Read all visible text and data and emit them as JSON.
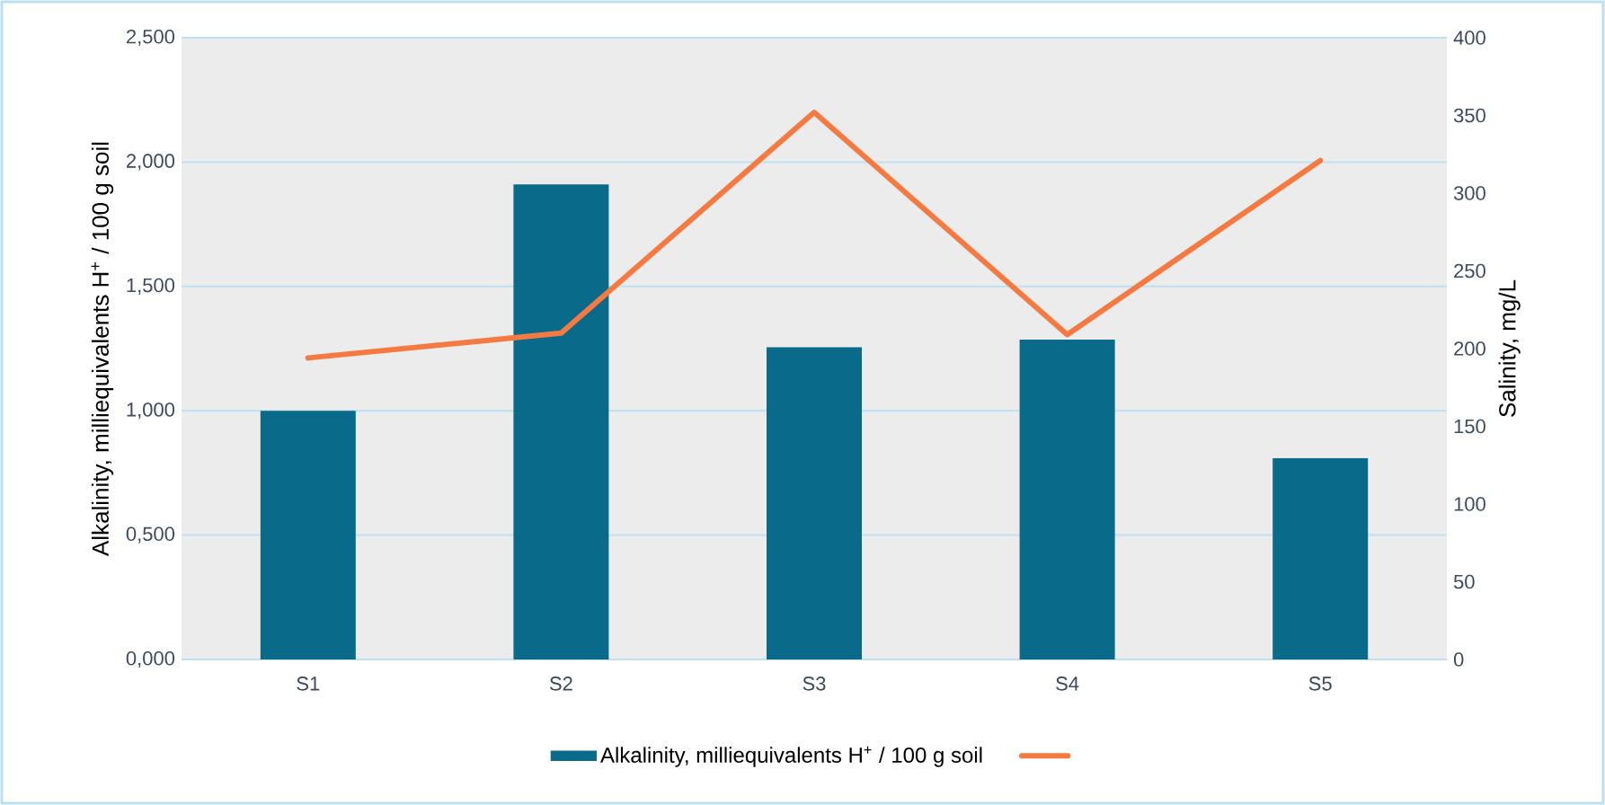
{
  "chart_data": {
    "type": "bar",
    "categories": [
      "S1",
      "S2",
      "S3",
      "S4",
      "S5"
    ],
    "series": [
      {
        "name": "Alkalinity, milliequivalents H$^{+}$ / 100 g soil",
        "color": "#0a6a8a",
        "values": [
          1.0,
          1.91,
          1.255,
          1.286,
          0.809
        ]
      },
      {
        "type": "line",
        "axis": "y2",
        "color": "#f47a42",
        "values": [
          194,
          210,
          352,
          209,
          321
        ]
      }
    ],
    "ylabel": "Alkalinity, milliequivalents H$^{+}$ / 100 g soil",
    "y2label": "Salinity, mg/L",
    "ylim": [
      0,
      2.5
    ],
    "yticks": [
      {
        "value": 0,
        "label": "0,000"
      },
      {
        "value": 0.5,
        "label": "0,500"
      },
      {
        "value": 1.0,
        "label": "1,000"
      },
      {
        "value": 1.5,
        "label": "1,500"
      },
      {
        "value": 2.0,
        "label": "2,000"
      },
      {
        "value": 2.5,
        "label": "2,500"
      }
    ],
    "y2lim": [
      0,
      400
    ],
    "y2ticks": [
      0,
      50,
      100,
      150,
      200,
      250,
      300,
      350,
      400
    ],
    "grid": "y",
    "legend": "bottom"
  }
}
